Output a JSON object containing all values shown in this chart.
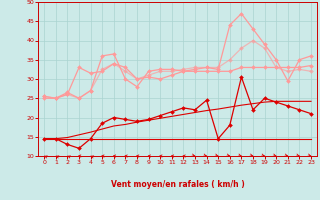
{
  "xlabel": "Vent moyen/en rafales ( km/h )",
  "background_color": "#cceae8",
  "grid_color": "#aad4d0",
  "xlim": [
    -0.5,
    23.5
  ],
  "ylim": [
    10,
    50
  ],
  "yticks": [
    10,
    15,
    20,
    25,
    30,
    35,
    40,
    45,
    50
  ],
  "xticks": [
    0,
    1,
    2,
    3,
    4,
    5,
    6,
    7,
    8,
    9,
    10,
    11,
    12,
    13,
    14,
    15,
    16,
    17,
    18,
    19,
    20,
    21,
    22,
    23
  ],
  "series": [
    {
      "x": [
        0,
        1,
        2,
        3,
        4,
        5,
        6,
        7,
        8,
        9,
        10,
        11,
        12,
        13,
        14,
        15,
        16,
        17,
        18,
        19,
        20,
        21,
        22,
        23
      ],
      "y": [
        14.5,
        14.5,
        14.5,
        14.5,
        14.5,
        14.5,
        14.5,
        14.5,
        14.5,
        14.5,
        14.5,
        14.5,
        14.5,
        14.5,
        14.5,
        14.5,
        14.5,
        14.5,
        14.5,
        14.5,
        14.5,
        14.5,
        14.5,
        14.5
      ],
      "color": "#dd0000",
      "lw": 0.8,
      "marker": null,
      "alpha": 1.0
    },
    {
      "x": [
        0,
        1,
        2,
        3,
        4,
        5,
        6,
        7,
        8,
        9,
        10,
        11,
        12,
        13,
        14,
        15,
        16,
        17,
        18,
        19,
        20,
        21,
        22,
        23
      ],
      "y": [
        14.5,
        14.5,
        14.8,
        15.5,
        16.2,
        17.0,
        17.8,
        18.2,
        18.8,
        19.3,
        19.8,
        20.3,
        20.8,
        21.3,
        21.8,
        22.2,
        22.7,
        23.2,
        23.6,
        24.0,
        24.2,
        24.2,
        24.2,
        24.2
      ],
      "color": "#dd0000",
      "lw": 0.8,
      "marker": null,
      "alpha": 1.0
    },
    {
      "x": [
        0,
        1,
        2,
        3,
        4,
        5,
        6,
        7,
        8,
        9,
        10,
        11,
        12,
        13,
        14,
        15,
        16,
        17,
        18,
        19,
        20,
        21,
        22,
        23
      ],
      "y": [
        14.5,
        14.5,
        13.0,
        12.0,
        14.5,
        18.5,
        20.0,
        19.5,
        19.0,
        19.5,
        20.5,
        21.5,
        22.5,
        22.0,
        24.5,
        14.5,
        18.0,
        30.5,
        22.0,
        25.0,
        24.0,
        23.0,
        22.0,
        21.0
      ],
      "color": "#dd0000",
      "lw": 0.9,
      "marker": "D",
      "markersize": 2.0,
      "alpha": 1.0
    },
    {
      "x": [
        0,
        1,
        2,
        3,
        4,
        5,
        6,
        7,
        8,
        9,
        10,
        11,
        12,
        13,
        14,
        15,
        16,
        17,
        18,
        19,
        20,
        21,
        22,
        23
      ],
      "y": [
        25.0,
        25.0,
        26.0,
        33.0,
        31.5,
        32.0,
        34.0,
        33.0,
        30.0,
        30.5,
        30.0,
        31.0,
        32.0,
        32.0,
        32.0,
        32.0,
        32.0,
        33.0,
        33.0,
        33.0,
        33.0,
        33.0,
        33.0,
        33.5
      ],
      "color": "#ff9999",
      "lw": 0.9,
      "marker": "D",
      "markersize": 2.0,
      "alpha": 1.0
    },
    {
      "x": [
        0,
        1,
        2,
        3,
        4,
        5,
        6,
        7,
        8,
        9,
        10,
        11,
        12,
        13,
        14,
        15,
        16,
        17,
        18,
        19,
        20,
        21,
        22,
        23
      ],
      "y": [
        25.5,
        25.0,
        26.5,
        25.0,
        27.0,
        36.0,
        36.5,
        30.0,
        28.0,
        32.0,
        32.5,
        32.5,
        32.0,
        32.5,
        33.0,
        32.5,
        44.0,
        47.0,
        43.0,
        39.0,
        35.0,
        29.5,
        35.0,
        36.0
      ],
      "color": "#ff9999",
      "lw": 0.9,
      "marker": "D",
      "markersize": 2.0,
      "alpha": 1.0
    },
    {
      "x": [
        0,
        1,
        2,
        3,
        4,
        5,
        6,
        7,
        8,
        9,
        10,
        11,
        12,
        13,
        14,
        15,
        16,
        17,
        18,
        19,
        20,
        21,
        22,
        23
      ],
      "y": [
        25.5,
        25.0,
        26.0,
        25.0,
        27.0,
        32.5,
        34.0,
        32.0,
        30.0,
        31.0,
        32.0,
        32.0,
        32.5,
        33.0,
        33.0,
        33.0,
        35.0,
        38.0,
        40.0,
        38.0,
        33.0,
        32.0,
        32.5,
        32.0
      ],
      "color": "#ff9999",
      "lw": 0.9,
      "marker": "D",
      "markersize": 2.0,
      "alpha": 0.65
    }
  ],
  "arrow_angles": [
    225,
    225,
    225,
    270,
    225,
    270,
    270,
    270,
    270,
    270,
    270,
    270,
    270,
    45,
    45,
    45,
    45,
    45,
    45,
    45,
    45,
    45,
    45,
    45
  ],
  "wind_arrows_color": "#dd0000"
}
